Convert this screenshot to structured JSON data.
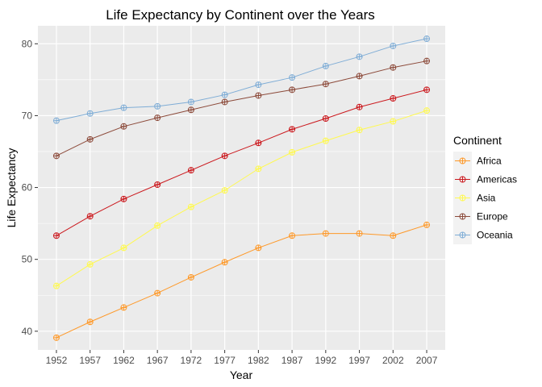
{
  "chart_data": {
    "type": "line",
    "title": "Life Expectancy by Continent over the Years",
    "xlabel": "Year",
    "ylabel": "Life Expectancy",
    "x": [
      1952,
      1957,
      1962,
      1967,
      1972,
      1977,
      1982,
      1987,
      1992,
      1997,
      2002,
      2007
    ],
    "xlim": [
      1949.25,
      2009.75
    ],
    "ylim": [
      37.4,
      82.5
    ],
    "yticks": [
      40,
      50,
      60,
      70,
      80
    ],
    "grid": true,
    "legend": {
      "title": "Continent",
      "position": "right"
    },
    "series": [
      {
        "name": "Africa",
        "color": "#fe9929",
        "values": [
          39.1,
          41.3,
          43.3,
          45.3,
          47.5,
          49.6,
          51.6,
          53.3,
          53.6,
          53.6,
          53.3,
          54.8
        ]
      },
      {
        "name": "Americas",
        "color": "#cb181d",
        "values": [
          53.3,
          56.0,
          58.4,
          60.4,
          62.4,
          64.4,
          66.2,
          68.1,
          69.6,
          71.2,
          72.4,
          73.6
        ]
      },
      {
        "name": "Asia",
        "color": "#fff94f",
        "values": [
          46.3,
          49.3,
          51.6,
          54.7,
          57.3,
          59.6,
          62.6,
          64.9,
          66.5,
          68.0,
          69.2,
          70.7
        ]
      },
      {
        "name": "Europe",
        "color": "#8c4a3a",
        "values": [
          64.4,
          66.7,
          68.5,
          69.7,
          70.8,
          71.9,
          72.8,
          73.6,
          74.4,
          75.5,
          76.7,
          77.6
        ]
      },
      {
        "name": "Oceania",
        "color": "#7fadd6",
        "values": [
          69.3,
          70.3,
          71.1,
          71.3,
          71.9,
          72.9,
          74.3,
          75.3,
          76.9,
          78.2,
          79.7,
          80.7
        ]
      }
    ]
  }
}
